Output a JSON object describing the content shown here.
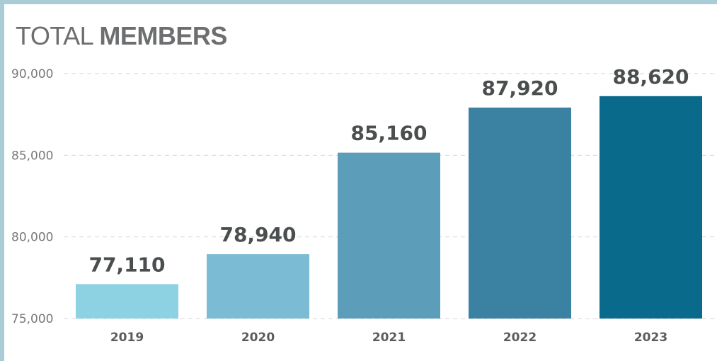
{
  "title": {
    "light": "TOTAL",
    "bold": "MEMBERS"
  },
  "chart_data": {
    "type": "bar",
    "title": "TOTAL MEMBERS",
    "categories": [
      "2019",
      "2020",
      "2021",
      "2022",
      "2023"
    ],
    "values": [
      77110,
      78940,
      85160,
      87920,
      88620
    ],
    "value_labels": [
      "77,110",
      "78,940",
      "85,160",
      "87,920",
      "88,620"
    ],
    "ylim": [
      75000,
      90000
    ],
    "yticks": [
      75000,
      80000,
      85000,
      90000
    ],
    "ytick_labels": [
      "75,000",
      "80,000",
      "85,000",
      "90,000"
    ],
    "xlabel": "",
    "ylabel": "",
    "grid": "horizontal dashed",
    "colors": [
      "#8dd2e2",
      "#7bbbd3",
      "#5c9dba",
      "#3b81a2",
      "#0a6a8c"
    ]
  }
}
